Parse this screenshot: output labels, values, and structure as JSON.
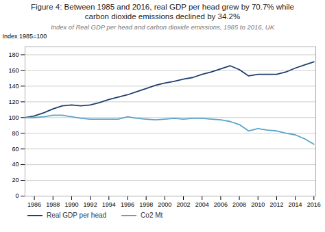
{
  "chart_data": {
    "type": "line",
    "title": [
      "Figure 4: Between 1985 and 2016, real GDP per head grew by 70.7% while",
      "carbon dioxide emissions declined by 34.2%"
    ],
    "subtitle": "Index of Real GDP per head and carbon dioxide emissions, 1985 to 2016, UK",
    "ylabel": "Index 1985=100",
    "x": [
      1985,
      1986,
      1987,
      1988,
      1989,
      1990,
      1991,
      1992,
      1993,
      1994,
      1995,
      1996,
      1997,
      1998,
      1999,
      2000,
      2001,
      2002,
      2003,
      2004,
      2005,
      2006,
      2007,
      2008,
      2009,
      2010,
      2011,
      2012,
      2013,
      2014,
      2015,
      2016
    ],
    "series": [
      {
        "name": "Real GDP per head",
        "color": "#1f3f6e",
        "values": [
          100,
          102,
          106,
          111,
          115,
          116,
          115,
          116,
          119,
          123,
          126,
          129,
          133,
          137,
          141,
          144,
          146,
          149,
          151,
          155,
          158,
          162,
          166,
          161,
          153,
          155,
          155,
          155,
          158,
          163,
          167,
          171
        ]
      },
      {
        "name": "Co2 Mt",
        "color": "#5ba3c9",
        "values": [
          100,
          100,
          101,
          103,
          103,
          101,
          99,
          98,
          98,
          98,
          98,
          101,
          99,
          98,
          97,
          98,
          99,
          98,
          99,
          99,
          98,
          97,
          95,
          91,
          83,
          86,
          84,
          83,
          80,
          78,
          73,
          66
        ]
      }
    ],
    "xlim": [
      1985,
      2016.2
    ],
    "xticks": [
      1986,
      1988,
      1990,
      1992,
      1994,
      1996,
      1998,
      2000,
      2002,
      2004,
      2006,
      2008,
      2010,
      2012,
      2014,
      2016
    ],
    "ylim": [
      0,
      190
    ],
    "yticks": [
      0,
      20,
      40,
      60,
      80,
      100,
      120,
      140,
      160,
      180
    ],
    "grid": true,
    "legend": "bottom"
  }
}
